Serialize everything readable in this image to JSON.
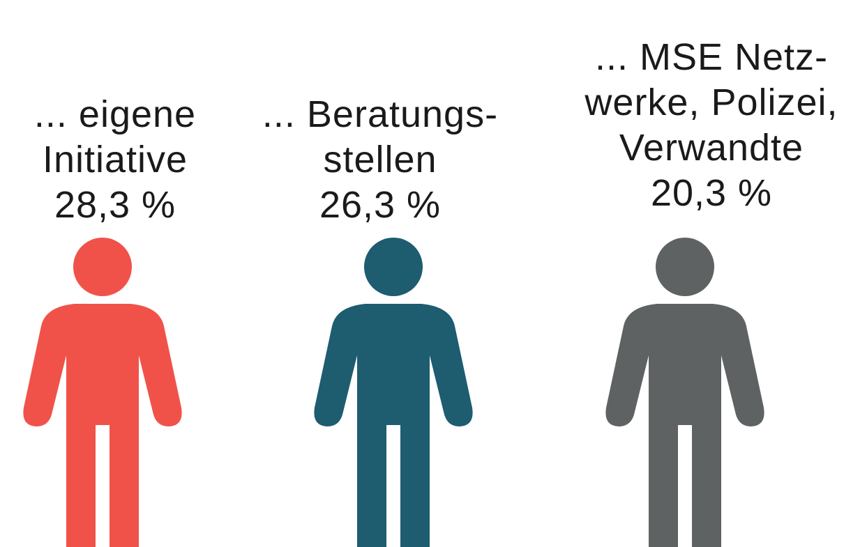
{
  "items": [
    {
      "lines": [
        "... eigene",
        "Initiative"
      ],
      "value": "28,3 %",
      "color": "#f0524a"
    },
    {
      "lines": [
        "... Beratungs-",
        "stellen"
      ],
      "value": "26,3 %",
      "color": "#1e5c70"
    },
    {
      "lines": [
        "... MSE Netz-",
        "werke, Polizei,",
        "Verwandte"
      ],
      "value": "20,3 %",
      "color": "#5e6263"
    }
  ]
}
